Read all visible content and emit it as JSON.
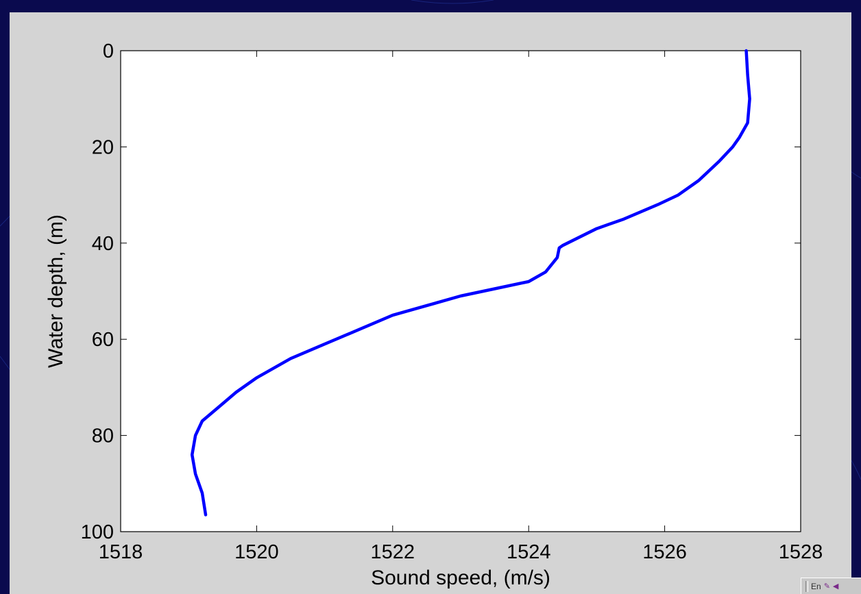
{
  "colors": {
    "background": "#0a0a4e",
    "panel": "#d4d4d4",
    "plot_area": "#ffffff",
    "line": "#0000ff"
  },
  "tray": {
    "language": "En",
    "icons": [
      "pen-icon",
      "speaker-icon"
    ]
  },
  "chart_data": {
    "type": "line",
    "xlabel": "Sound speed, (m/s)",
    "ylabel": "Water depth, (m)",
    "xlim": [
      1518,
      1528
    ],
    "ylim": [
      0,
      100
    ],
    "y_inverted": true,
    "grid": false,
    "xticks": [
      1518,
      1520,
      1522,
      1524,
      1526,
      1528
    ],
    "yticks": [
      0,
      20,
      40,
      60,
      80,
      100
    ],
    "series": [
      {
        "color": "#0000ff",
        "x": [
          1527.2,
          1527.22,
          1527.25,
          1527.22,
          1527.1,
          1527.0,
          1526.8,
          1526.5,
          1526.2,
          1525.9,
          1525.4,
          1525.0,
          1524.5,
          1524.45,
          1524.42,
          1524.25,
          1524.0,
          1523.5,
          1523.0,
          1522.5,
          1522.0,
          1521.5,
          1521.0,
          1520.5,
          1520.0,
          1519.7,
          1519.45,
          1519.2,
          1519.1,
          1519.05,
          1519.1,
          1519.2,
          1519.25
        ],
        "y": [
          0,
          5,
          10,
          15,
          18,
          20,
          23,
          27,
          30,
          32,
          35,
          37,
          40.5,
          41,
          43,
          46,
          48,
          49.5,
          51,
          53,
          55,
          58,
          61,
          64,
          68,
          71,
          74,
          77,
          80,
          84,
          88,
          92,
          96.5
        ]
      }
    ]
  }
}
